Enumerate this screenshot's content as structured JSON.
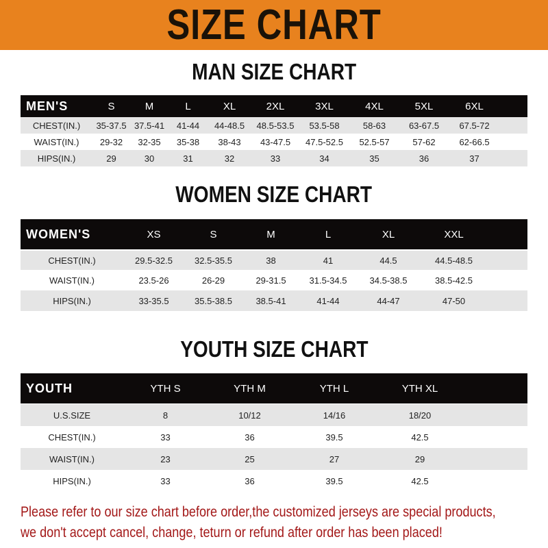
{
  "banner_title": "SIZE CHART",
  "colors": {
    "banner": "#e8821e",
    "header_row": "#0d0a0a",
    "alt_row": "#e5e5e5",
    "note": "#a31818"
  },
  "men": {
    "title": "MAN SIZE CHART",
    "header": [
      "MEN'S",
      "S",
      "M",
      "L",
      "XL",
      "2XL",
      "3XL",
      "4XL",
      "5XL",
      "6XL"
    ],
    "rows": [
      [
        "CHEST(IN.)",
        "35-37.5",
        "37.5-41",
        "41-44",
        "44-48.5",
        "48.5-53.5",
        "53.5-58",
        "58-63",
        "63-67.5",
        "67.5-72"
      ],
      [
        "WAIST(IN.)",
        "29-32",
        "32-35",
        "35-38",
        "38-43",
        "43-47.5",
        "47.5-52.5",
        "52.5-57",
        "57-62",
        "62-66.5"
      ],
      [
        "HIPS(IN.)",
        "29",
        "30",
        "31",
        "32",
        "33",
        "34",
        "35",
        "36",
        "37"
      ]
    ]
  },
  "women": {
    "title": "WOMEN SIZE CHART",
    "header": [
      "WOMEN'S",
      "XS",
      "S",
      "M",
      "L",
      "XL",
      "XXL"
    ],
    "rows": [
      [
        "CHEST(IN.)",
        "29.5-32.5",
        "32.5-35.5",
        "38",
        "41",
        "44.5",
        "44.5-48.5"
      ],
      [
        "WAIST(IN.)",
        "23.5-26",
        "26-29",
        "29-31.5",
        "31.5-34.5",
        "34.5-38.5",
        "38.5-42.5"
      ],
      [
        "HIPS(IN.)",
        "33-35.5",
        "35.5-38.5",
        "38.5-41",
        "41-44",
        "44-47",
        "47-50"
      ]
    ]
  },
  "youth": {
    "title": "YOUTH SIZE CHART",
    "header": [
      "YOUTH",
      "YTH S",
      "YTH M",
      "YTH L",
      "YTH XL"
    ],
    "rows": [
      [
        "U.S.SIZE",
        "8",
        "10/12",
        "14/16",
        "18/20"
      ],
      [
        "CHEST(IN.)",
        "33",
        "36",
        "39.5",
        "42.5"
      ],
      [
        "WAIST(IN.)",
        "23",
        "25",
        "27",
        "29"
      ],
      [
        "HIPS(IN.)",
        "33",
        "36",
        "39.5",
        "42.5"
      ]
    ]
  },
  "note": {
    "line1": "Please refer to our size chart before order,the customized jerseys are special products,",
    "line2": "we don't accept cancel, change, teturn or refund after order has been placed!"
  }
}
